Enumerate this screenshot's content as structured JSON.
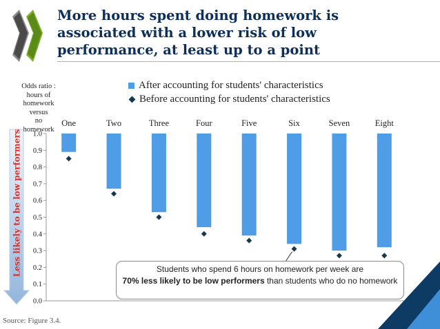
{
  "slide": {
    "title": "More hours spent doing homework is\nassociated with a lower risk of low\nperformance, at least up to a point",
    "source": "Source: Figure 3.4.",
    "side_label": "Less likely to be low performers",
    "callout": {
      "line1": "Students who spend 6 hours on homework per week are",
      "bold": "70% less likely to be low performers",
      "rest": " than students who do no homework"
    }
  },
  "colors": {
    "bar": "#4e9de6",
    "diamond": "#15384f",
    "title": "#0e2f5a",
    "side_label": "#d9342b",
    "accent": "#0d3b63"
  },
  "chart_data": {
    "type": "bar",
    "ylabel": "Odds ratio :\nhours of\nhomework\nversus\nno\nhomework",
    "categories": [
      "One",
      "Two",
      "Three",
      "Four",
      "Five",
      "Six",
      "Seven",
      "Eight"
    ],
    "ylim": [
      0,
      1.0
    ],
    "yticks": [
      "0.0",
      "0.1",
      "0.2",
      "0.3",
      "0.4",
      "0.5",
      "0.6",
      "0.7",
      "0.8",
      "0.9",
      "1.0"
    ],
    "grid": false,
    "bars_hang_from": 1.0,
    "legend_position": "top",
    "series": [
      {
        "name": "After accounting for students' characteristics",
        "kind": "bar",
        "values": [
          0.89,
          0.67,
          0.53,
          0.44,
          0.39,
          0.34,
          0.3,
          0.32
        ]
      },
      {
        "name": "Before accounting for students' characteristics",
        "kind": "diamond",
        "values": [
          0.85,
          0.64,
          0.5,
          0.4,
          0.36,
          0.31,
          0.27,
          0.27
        ]
      }
    ]
  }
}
